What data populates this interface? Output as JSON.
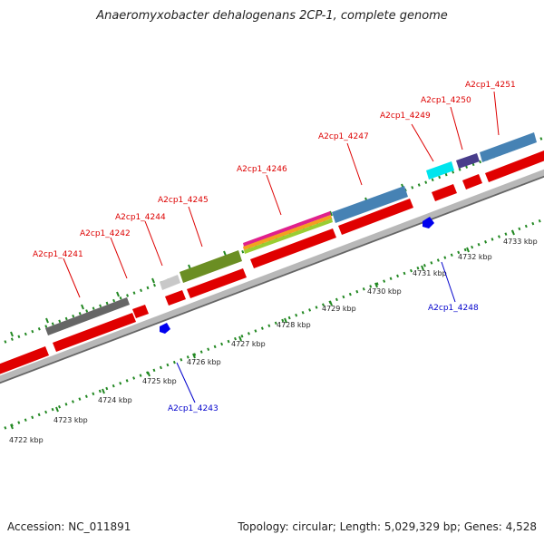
{
  "title": "Anaeromyxobacter dehalogenans 2CP-1, complete genome",
  "footer": {
    "accession": "Accession: NC_011891",
    "summary": "Topology: circular; Length: 5,029,329 bp; Genes: 4,528"
  },
  "ticks": [
    {
      "label": "4722 kbp"
    },
    {
      "label": "4723 kbp"
    },
    {
      "label": "4724 kbp"
    },
    {
      "label": "4725 kbp"
    },
    {
      "label": "4726 kbp"
    },
    {
      "label": "4727 kbp"
    },
    {
      "label": "4728 kbp"
    },
    {
      "label": "4729 kbp"
    },
    {
      "label": "4730 kbp"
    },
    {
      "label": "4731 kbp"
    },
    {
      "label": "4732 kbp"
    },
    {
      "label": "4733 kbp"
    }
  ],
  "genes_forward": [
    {
      "label": "A2cp1_4241"
    },
    {
      "label": "A2cp1_4242"
    },
    {
      "label": "A2cp1_4244"
    },
    {
      "label": "A2cp1_4245"
    },
    {
      "label": "A2cp1_4246"
    },
    {
      "label": "A2cp1_4247"
    },
    {
      "label": "A2cp1_4249"
    },
    {
      "label": "A2cp1_4250"
    },
    {
      "label": "A2cp1_4251"
    }
  ],
  "genes_reverse": [
    {
      "label": "A2cp1_4243"
    },
    {
      "label": "A2cp1_4248"
    }
  ],
  "colors": {
    "forward_label": "#dd0000",
    "reverse_label": "#0000cc",
    "cds": "#ff0000",
    "rna": "#0000ee",
    "backbone": "#999999",
    "tick": "#228822"
  }
}
